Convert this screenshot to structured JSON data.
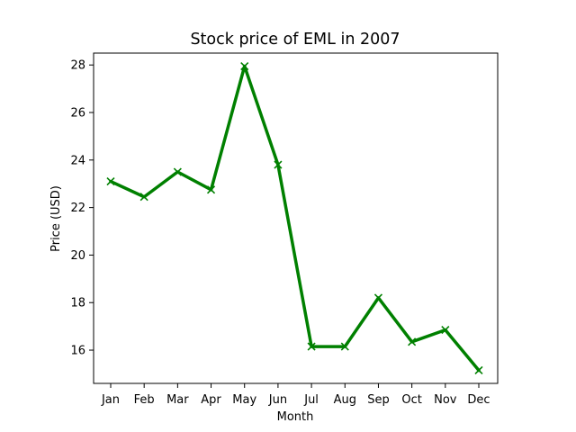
{
  "chart_data": {
    "type": "line",
    "title": "Stock price of EML in 2007",
    "xlabel": "Month",
    "ylabel": "Price (USD)",
    "categories": [
      "Jan",
      "Feb",
      "Mar",
      "Apr",
      "May",
      "Jun",
      "Jul",
      "Aug",
      "Sep",
      "Oct",
      "Nov",
      "Dec"
    ],
    "series": [
      {
        "values": [
          23.1,
          22.45,
          23.5,
          22.75,
          27.95,
          23.8,
          16.15,
          16.15,
          18.2,
          16.35,
          16.85,
          15.15
        ],
        "color": "#008000",
        "marker": "x"
      }
    ],
    "ylim": [
      14.6,
      28.5
    ],
    "yticks": [
      16,
      18,
      20,
      22,
      24,
      26,
      28
    ],
    "grid": false,
    "legend": "none"
  }
}
